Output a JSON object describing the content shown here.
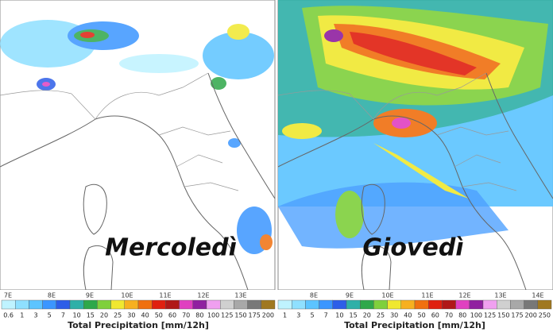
{
  "panels": [
    {
      "day": "Mercoledì",
      "longitudes": [
        "7E",
        "8E",
        "9E",
        "10E",
        "11E",
        "12E",
        "13E"
      ],
      "colorbar_labels": [
        "0.6",
        "1",
        "3",
        "5",
        "7",
        "10",
        "15",
        "20",
        "25",
        "30",
        "40",
        "50",
        "60",
        "70",
        "80",
        "100",
        "125",
        "150",
        "175",
        "200"
      ],
      "colorbar_title": "Total Precipitation [mm/12h]"
    },
    {
      "day": "Giovedì",
      "longitudes": [
        "8E",
        "9E",
        "10E",
        "11E",
        "12E",
        "13E",
        "14E"
      ],
      "colorbar_labels": [
        "1",
        "3",
        "5",
        "7",
        "10",
        "15",
        "20",
        "25",
        "30",
        "40",
        "50",
        "60",
        "70",
        "80",
        "100",
        "125",
        "150",
        "175",
        "200",
        "250"
      ],
      "colorbar_title": "Total Precipitation [mm/12h]"
    }
  ],
  "colorbar_colors": [
    "#bff3ff",
    "#8fe0ff",
    "#5cc4ff",
    "#3b96ff",
    "#2d5ee8",
    "#2fb0a8",
    "#2ea84a",
    "#7fd03c",
    "#f0e830",
    "#f7b020",
    "#f07010",
    "#e02010",
    "#b01818",
    "#e040c0",
    "#9020a0",
    "#f0a0f0",
    "#d0d0d0",
    "#a8a8a8",
    "#787878",
    "#a07820"
  ]
}
